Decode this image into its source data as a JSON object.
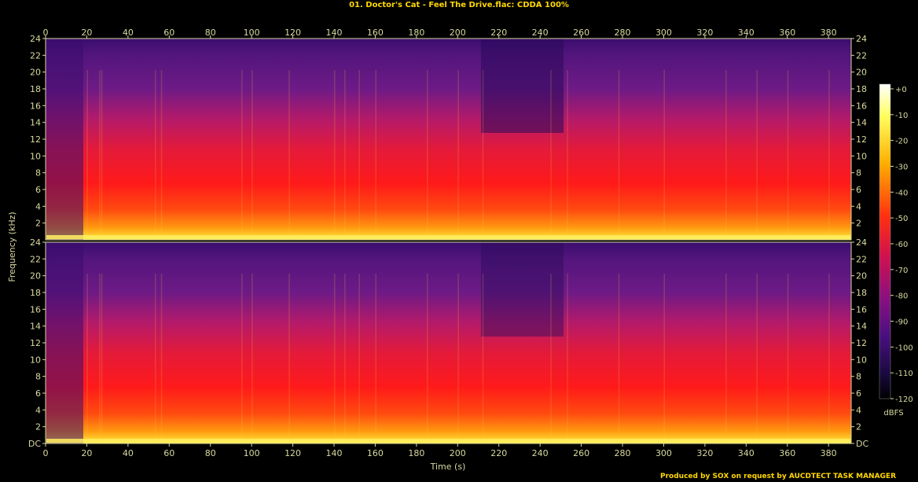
{
  "chart_data": {
    "type": "heatmap",
    "title": "01. Doctor's Cat - Feel The Drive.flac: CDDA 100%",
    "xlabel": "Time (s)",
    "ylabel": "Frequency (kHz)",
    "x_ticks": [
      0,
      20,
      40,
      60,
      80,
      100,
      120,
      140,
      160,
      180,
      200,
      220,
      240,
      260,
      280,
      300,
      320,
      340,
      360,
      380
    ],
    "xlim": [
      0,
      391
    ],
    "y_ticks_top": [
      "2",
      "4",
      "6",
      "8",
      "10",
      "12",
      "14",
      "16",
      "18",
      "20",
      "22",
      "24"
    ],
    "y_ticks_bottom": [
      "DC",
      "2",
      "4",
      "6",
      "8",
      "10",
      "12",
      "14",
      "16",
      "18",
      "20",
      "22",
      "24"
    ],
    "ylim_khz": [
      0,
      24
    ],
    "channels": 2,
    "colorbar": {
      "unit": "dBFS",
      "ticks": [
        "+0",
        "-10",
        "-20",
        "-30",
        "-40",
        "-50",
        "-60",
        "-70",
        "-80",
        "-90",
        "-100",
        "-110",
        "-120"
      ],
      "range": [
        -120,
        0
      ]
    },
    "colors": {
      "axis": "#d9d9a0",
      "title": "#ffd700",
      "background": "#000000",
      "quiet": "#3a0a6a",
      "mid": "#ff1a1a",
      "loud": "#ffff80"
    }
  },
  "footer": "Produced by SOX on request by AUCDTECT TASK MANAGER"
}
